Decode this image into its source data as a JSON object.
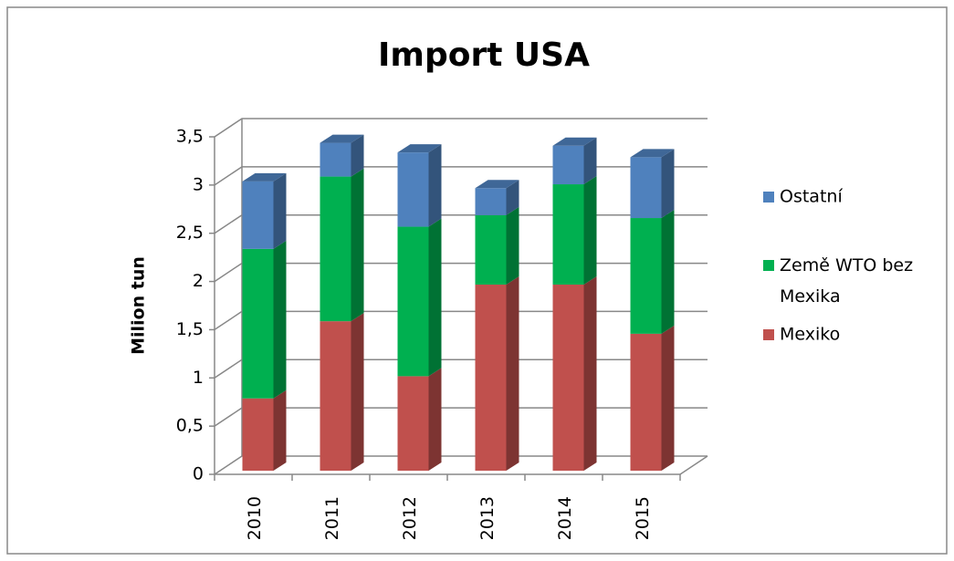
{
  "chart_data": {
    "type": "bar3d-stacked",
    "title": "Import USA",
    "y_label": "Milion tun",
    "categories": [
      "2010",
      "2011",
      "2012",
      "2013",
      "2014",
      "2015"
    ],
    "series": [
      {
        "name": "Mexiko",
        "color": "#c0504d",
        "values": [
          0.75,
          1.55,
          0.98,
          1.93,
          1.93,
          1.42
        ]
      },
      {
        "name": "Země WTO bez Mexika",
        "color": "#00b050",
        "values": [
          1.55,
          1.5,
          1.55,
          0.72,
          1.04,
          1.2
        ]
      },
      {
        "name": "Ostatní",
        "color": "#4f81bd",
        "values": [
          0.7,
          0.35,
          0.77,
          0.28,
          0.4,
          0.63
        ]
      }
    ],
    "ylim": [
      0,
      3.5
    ],
    "yticks": [
      0,
      {
        "value": 0.5,
        "label": "0,5"
      },
      1,
      {
        "value": 1.5,
        "label": "1,5"
      },
      2,
      {
        "value": 2.5,
        "label": "2,5"
      },
      3,
      {
        "value": 3.5,
        "label": "3,5"
      }
    ],
    "grid": true,
    "legend": "right"
  }
}
